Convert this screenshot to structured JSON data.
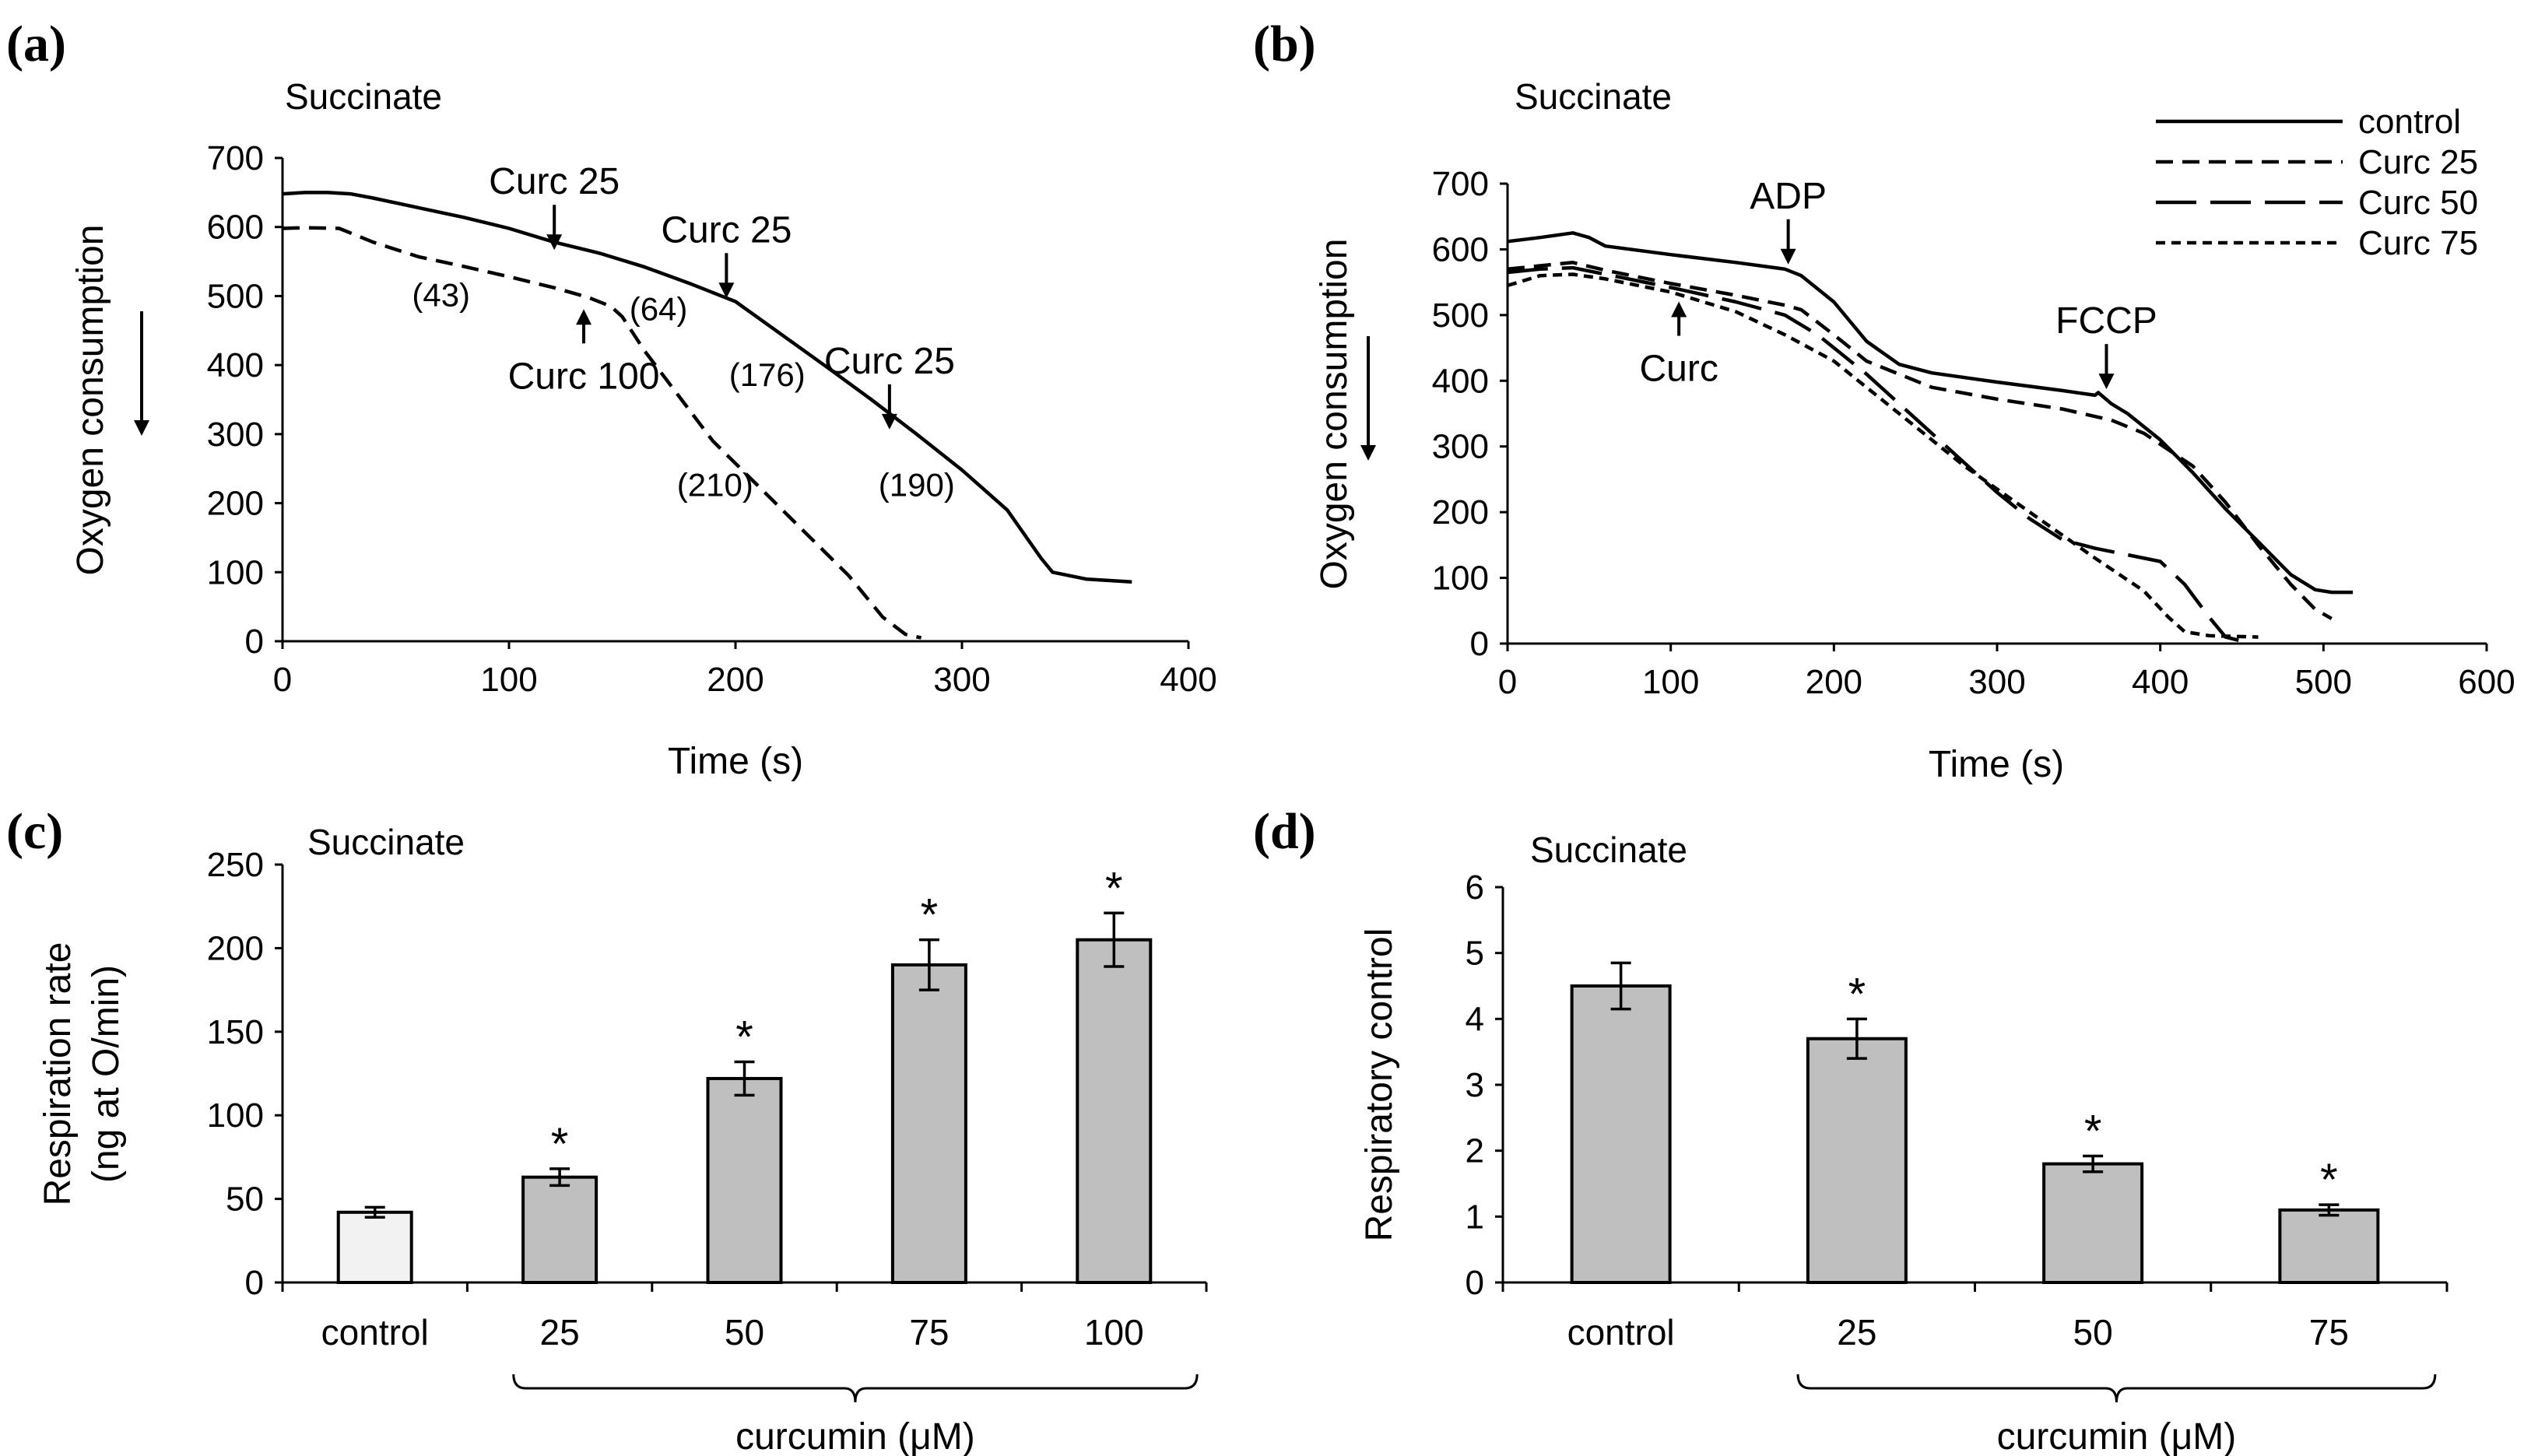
{
  "chart_data": [
    {
      "panel": "(a)",
      "type": "line",
      "title": "Succinate",
      "xlabel": "Time (s)",
      "ylabel": "Oxygen consumption",
      "xlim": [
        0,
        400
      ],
      "ylim": [
        0,
        700
      ],
      "xticks": [
        0,
        100,
        200,
        300,
        400
      ],
      "yticks": [
        0,
        100,
        200,
        300,
        400,
        500,
        600,
        700
      ],
      "series": [
        {
          "name": "solid",
          "style": "solid",
          "points": [
            [
              0,
              648
            ],
            [
              10,
              650
            ],
            [
              20,
              650
            ],
            [
              30,
              648
            ],
            [
              40,
              642
            ],
            [
              60,
              628
            ],
            [
              80,
              614
            ],
            [
              100,
              598
            ],
            [
              120,
              578
            ],
            [
              140,
              562
            ],
            [
              160,
              542
            ],
            [
              180,
              518
            ],
            [
              200,
              492
            ],
            [
              220,
              445
            ],
            [
              240,
              398
            ],
            [
              260,
              350
            ],
            [
              280,
              300
            ],
            [
              300,
              248
            ],
            [
              320,
              190
            ],
            [
              335,
              120
            ],
            [
              340,
              100
            ],
            [
              355,
              90
            ],
            [
              375,
              86
            ]
          ]
        },
        {
          "name": "dashed",
          "style": "dashed",
          "points": [
            [
              0,
              598
            ],
            [
              10,
              599
            ],
            [
              25,
              598
            ],
            [
              40,
              578
            ],
            [
              60,
              557
            ],
            [
              80,
              543
            ],
            [
              100,
              528
            ],
            [
              120,
              512
            ],
            [
              135,
              498
            ],
            [
              145,
              485
            ],
            [
              150,
              470
            ],
            [
              160,
              420
            ],
            [
              175,
              355
            ],
            [
              190,
              290
            ],
            [
              210,
              225
            ],
            [
              230,
              160
            ],
            [
              250,
              95
            ],
            [
              265,
              35
            ],
            [
              275,
              10
            ],
            [
              282,
              5
            ]
          ]
        }
      ],
      "annotations": [
        {
          "text": "Curc 25",
          "x": 120,
          "y": 560,
          "arrow": "down"
        },
        {
          "text": "Curc 25",
          "x": 196,
          "y": 490,
          "arrow": "down"
        },
        {
          "text": "Curc 25",
          "x": 268,
          "y": 300,
          "arrow": "down"
        },
        {
          "text": "Curc 100",
          "x": 133,
          "y": 490,
          "arrow": "up"
        },
        {
          "text": "(43)",
          "x": 70,
          "y": 485
        },
        {
          "text": "(64)",
          "x": 166,
          "y": 465
        },
        {
          "text": "(176)",
          "x": 214,
          "y": 370
        },
        {
          "text": "(210)",
          "x": 191,
          "y": 210
        },
        {
          "text": "(190)",
          "x": 280,
          "y": 210
        }
      ]
    },
    {
      "panel": "(b)",
      "type": "line",
      "title": "Succinate",
      "xlabel": "Time (s)",
      "ylabel": "Oxygen consumption",
      "xlim": [
        0,
        600
      ],
      "ylim": [
        0,
        700
      ],
      "xticks": [
        0,
        100,
        200,
        300,
        400,
        500,
        600
      ],
      "yticks": [
        0,
        100,
        200,
        300,
        400,
        500,
        600,
        700
      ],
      "legend": [
        "control",
        "Curc 25",
        "Curc 50",
        "Curc 75"
      ],
      "series": [
        {
          "name": "control",
          "style": "solid",
          "points": [
            [
              0,
              612
            ],
            [
              20,
              618
            ],
            [
              40,
              625
            ],
            [
              50,
              618
            ],
            [
              60,
              605
            ],
            [
              100,
              592
            ],
            [
              140,
              580
            ],
            [
              170,
              570
            ],
            [
              180,
              560
            ],
            [
              200,
              520
            ],
            [
              220,
              460
            ],
            [
              240,
              425
            ],
            [
              260,
              412
            ],
            [
              300,
              398
            ],
            [
              340,
              385
            ],
            [
              360,
              378
            ],
            [
              362,
              382
            ],
            [
              370,
              365
            ],
            [
              380,
              350
            ],
            [
              400,
              310
            ],
            [
              420,
              260
            ],
            [
              440,
              205
            ],
            [
              460,
              155
            ],
            [
              480,
              105
            ],
            [
              495,
              82
            ],
            [
              505,
              78
            ],
            [
              518,
              78
            ]
          ]
        },
        {
          "name": "Curc 25",
          "style": "dashed",
          "points": [
            [
              0,
              570
            ],
            [
              20,
              575
            ],
            [
              40,
              580
            ],
            [
              60,
              568
            ],
            [
              100,
              548
            ],
            [
              140,
              530
            ],
            [
              170,
              515
            ],
            [
              180,
              508
            ],
            [
              200,
              470
            ],
            [
              220,
              430
            ],
            [
              260,
              390
            ],
            [
              300,
              372
            ],
            [
              340,
              357
            ],
            [
              370,
              340
            ],
            [
              390,
              320
            ],
            [
              420,
              270
            ],
            [
              440,
              215
            ],
            [
              460,
              150
            ],
            [
              480,
              90
            ],
            [
              495,
              52
            ],
            [
              505,
              38
            ]
          ]
        },
        {
          "name": "Curc 50",
          "style": "longdash",
          "points": [
            [
              0,
              565
            ],
            [
              20,
              570
            ],
            [
              40,
              572
            ],
            [
              60,
              562
            ],
            [
              100,
              542
            ],
            [
              140,
              520
            ],
            [
              170,
              500
            ],
            [
              190,
              470
            ],
            [
              220,
              410
            ],
            [
              260,
              320
            ],
            [
              300,
              230
            ],
            [
              320,
              190
            ],
            [
              340,
              158
            ],
            [
              360,
              145
            ],
            [
              380,
              135
            ],
            [
              400,
              125
            ],
            [
              415,
              90
            ],
            [
              430,
              40
            ],
            [
              440,
              10
            ],
            [
              448,
              5
            ]
          ]
        },
        {
          "name": "Curc 75",
          "style": "shortdash",
          "points": [
            [
              0,
              545
            ],
            [
              20,
              560
            ],
            [
              40,
              562
            ],
            [
              60,
              555
            ],
            [
              100,
              535
            ],
            [
              140,
              505
            ],
            [
              170,
              470
            ],
            [
              200,
              430
            ],
            [
              240,
              350
            ],
            [
              280,
              270
            ],
            [
              320,
              200
            ],
            [
              360,
              130
            ],
            [
              390,
              80
            ],
            [
              405,
              40
            ],
            [
              415,
              18
            ],
            [
              430,
              12
            ],
            [
              460,
              10
            ]
          ]
        }
      ],
      "annotations": [
        {
          "text": "ADP",
          "x": 172,
          "y": 570,
          "arrow": "down"
        },
        {
          "text": "FCCP",
          "x": 367,
          "y": 380,
          "arrow": "down"
        },
        {
          "text": "Curc",
          "x": 105,
          "y": 530,
          "arrow": "up"
        }
      ]
    },
    {
      "panel": "(c)",
      "type": "bar",
      "title": "Succinate",
      "ylabel": "Respiration rate",
      "ylabel2": "(ng at O/min)",
      "categories": [
        "control",
        "25",
        "50",
        "75",
        "100"
      ],
      "values": [
        42,
        63,
        122,
        190,
        205
      ],
      "errors": [
        3,
        5,
        10,
        15,
        16
      ],
      "significant": [
        false,
        true,
        true,
        true,
        true
      ],
      "star": "*",
      "ylim": [
        0,
        250
      ],
      "yticks": [
        0,
        50,
        100,
        150,
        200,
        250
      ],
      "group_label": "curcumin (μM)",
      "colors": {
        "control": "#f2f2f2",
        "treated": "#bfbfbf"
      }
    },
    {
      "panel": "(d)",
      "type": "bar",
      "title": "Succinate",
      "ylabel": "Respiratory control",
      "categories": [
        "control",
        "25",
        "50",
        "75"
      ],
      "values": [
        4.5,
        3.7,
        1.8,
        1.1
      ],
      "errors": [
        0.35,
        0.3,
        0.12,
        0.08
      ],
      "significant": [
        false,
        true,
        true,
        true
      ],
      "star": "*",
      "ylim": [
        0,
        6
      ],
      "yticks": [
        0,
        1,
        2,
        3,
        4,
        5,
        6
      ],
      "group_label": "curcumin (μM)",
      "colors": {
        "control": "#bfbfbf",
        "treated": "#bfbfbf"
      }
    }
  ]
}
